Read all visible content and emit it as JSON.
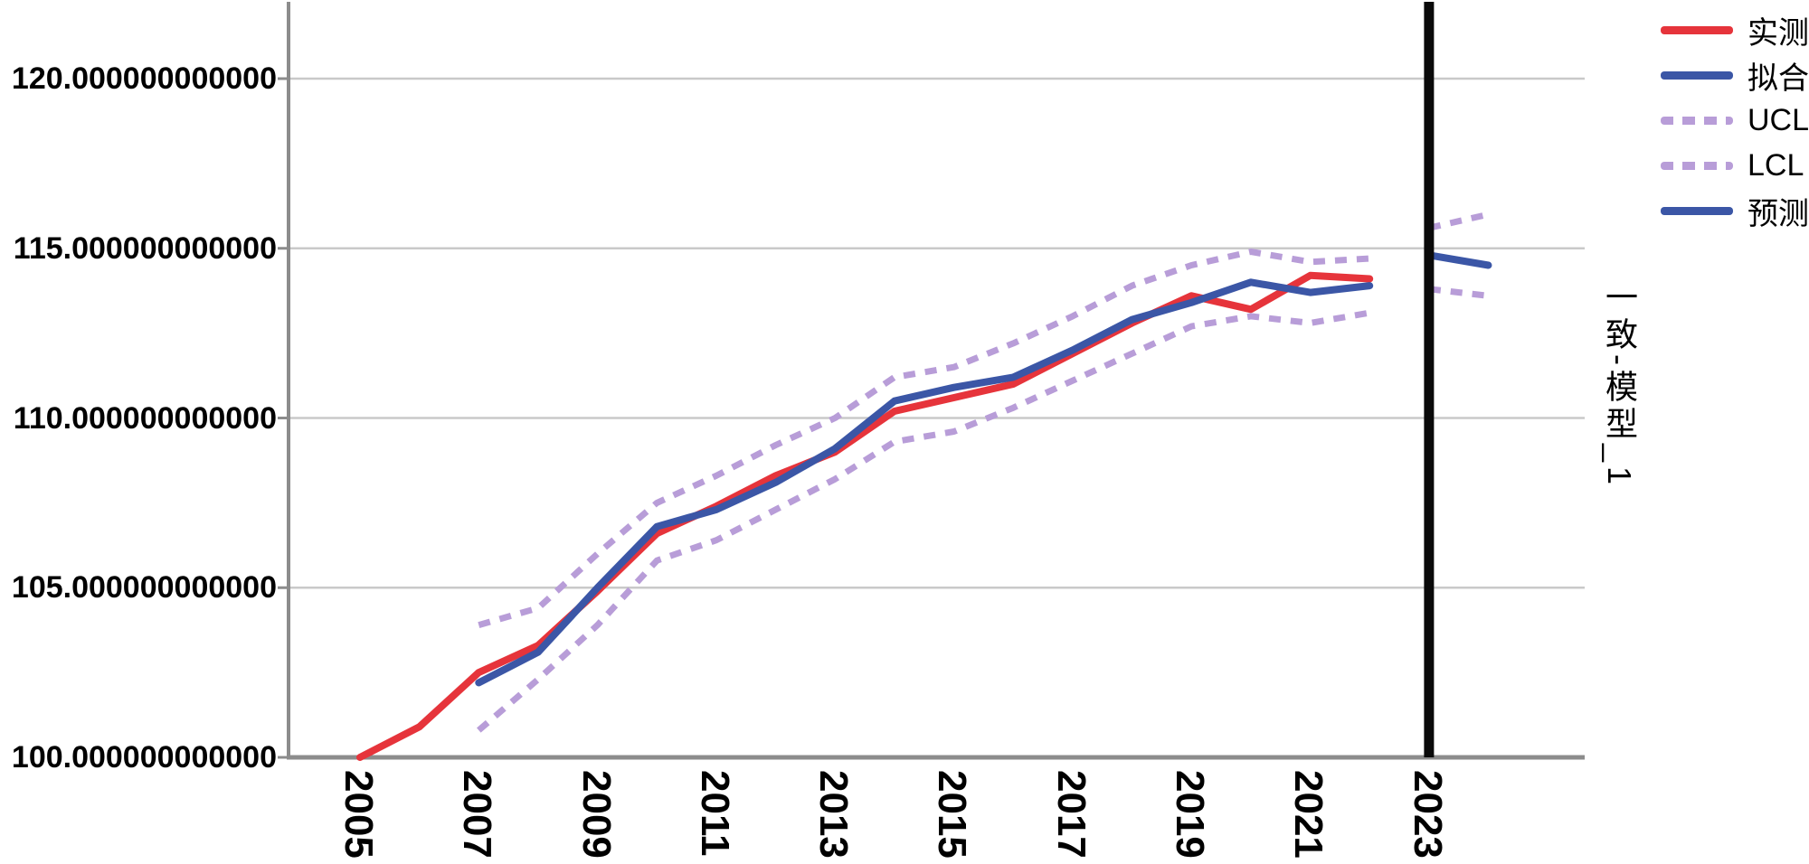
{
  "chart_data": {
    "type": "line",
    "title": "",
    "xlabel": "",
    "right_axis_label": "一致-模型_1",
    "x_tick_labels": [
      "2005",
      "2007",
      "2009",
      "2011",
      "2013",
      "2015",
      "2017",
      "2019",
      "2021",
      "2023"
    ],
    "x_tick_years": [
      2005,
      2007,
      2009,
      2011,
      2013,
      2015,
      2017,
      2019,
      2021,
      2023
    ],
    "y_tick_labels": [
      "100.000000000000",
      "105.000000000000",
      "110.000000000000",
      "115.000000000000",
      "120.000000000000"
    ],
    "y_tick_values": [
      100,
      105,
      110,
      115,
      120
    ],
    "ylim": [
      100,
      122
    ],
    "xlim": [
      2003.8,
      2026.6
    ],
    "grid": "horizontal",
    "legend_position": "right",
    "reference_line_year": 2023,
    "colors": {
      "observed": "#e6343b",
      "fit": "#3b56a6",
      "confidence": "#b89dd8",
      "forecast": "#3b56a6",
      "gridline": "#c9c9c9",
      "axis": "#8c8c8c",
      "reference_line": "#0a0a0a",
      "text": "#000000"
    },
    "series": [
      {
        "id": "ucl",
        "name": "UCL",
        "style": "dashed",
        "color": "#b89dd8",
        "segments": [
          [
            [
              2007,
              103.9
            ],
            [
              2008,
              104.4
            ],
            [
              2009,
              106.0
            ],
            [
              2010,
              107.5
            ],
            [
              2011,
              108.3
            ],
            [
              2012,
              109.2
            ],
            [
              2013,
              110.0
            ],
            [
              2014,
              111.2
            ],
            [
              2015,
              111.5
            ],
            [
              2016,
              112.2
            ],
            [
              2017,
              113.0
            ],
            [
              2018,
              113.9
            ],
            [
              2019,
              114.5
            ],
            [
              2020,
              114.9
            ],
            [
              2021,
              114.6
            ],
            [
              2022,
              114.7
            ]
          ],
          [
            [
              2023,
              115.6
            ],
            [
              2024,
              116.0
            ]
          ]
        ]
      },
      {
        "id": "lcl",
        "name": "LCL",
        "style": "dashed",
        "color": "#b89dd8",
        "segments": [
          [
            [
              2007,
              100.8
            ],
            [
              2008,
              102.3
            ],
            [
              2009,
              103.9
            ],
            [
              2010,
              105.8
            ],
            [
              2011,
              106.4
            ],
            [
              2012,
              107.3
            ],
            [
              2013,
              108.2
            ],
            [
              2014,
              109.3
            ],
            [
              2015,
              109.6
            ],
            [
              2016,
              110.3
            ],
            [
              2017,
              111.1
            ],
            [
              2018,
              111.9
            ],
            [
              2019,
              112.7
            ],
            [
              2020,
              113.0
            ],
            [
              2021,
              112.8
            ],
            [
              2022,
              113.1
            ]
          ],
          [
            [
              2023,
              113.8
            ],
            [
              2024,
              113.6
            ]
          ]
        ]
      },
      {
        "id": "observed",
        "name": "实测",
        "style": "solid",
        "color": "#e6343b",
        "segments": [
          [
            [
              2005,
              100.0
            ],
            [
              2006,
              100.9
            ],
            [
              2007,
              102.5
            ],
            [
              2008,
              103.3
            ],
            [
              2009,
              104.9
            ],
            [
              2010,
              106.6
            ],
            [
              2011,
              107.4
            ],
            [
              2012,
              108.3
            ],
            [
              2013,
              109.0
            ],
            [
              2014,
              110.2
            ],
            [
              2015,
              110.6
            ],
            [
              2016,
              111.0
            ],
            [
              2017,
              111.9
            ],
            [
              2018,
              112.8
            ],
            [
              2019,
              113.6
            ],
            [
              2020,
              113.2
            ],
            [
              2021,
              114.2
            ],
            [
              2022,
              114.1
            ]
          ]
        ]
      },
      {
        "id": "fit",
        "name": "拟合",
        "style": "solid",
        "color": "#3b56a6",
        "segments": [
          [
            [
              2007,
              102.2
            ],
            [
              2008,
              103.1
            ],
            [
              2009,
              105.0
            ],
            [
              2010,
              106.8
            ],
            [
              2011,
              107.3
            ],
            [
              2012,
              108.1
            ],
            [
              2013,
              109.1
            ],
            [
              2014,
              110.5
            ],
            [
              2015,
              110.9
            ],
            [
              2016,
              111.2
            ],
            [
              2017,
              112.0
            ],
            [
              2018,
              112.9
            ],
            [
              2019,
              113.4
            ],
            [
              2020,
              114.0
            ],
            [
              2021,
              113.7
            ],
            [
              2022,
              113.9
            ]
          ]
        ]
      },
      {
        "id": "forecast",
        "name": "预测",
        "style": "solid",
        "color": "#3b56a6",
        "segments": [
          [
            [
              2023,
              114.8
            ],
            [
              2024,
              114.5
            ]
          ]
        ]
      }
    ]
  },
  "legend": {
    "items": [
      {
        "label": "实测",
        "style": "solid",
        "color": "#e6343b"
      },
      {
        "label": "拟合",
        "style": "solid",
        "color": "#3b56a6"
      },
      {
        "label": "UCL",
        "style": "dashed",
        "color": "#b89dd8"
      },
      {
        "label": "LCL",
        "style": "dashed",
        "color": "#b89dd8"
      },
      {
        "label": "预测",
        "style": "solid",
        "color": "#3b56a6"
      }
    ]
  }
}
